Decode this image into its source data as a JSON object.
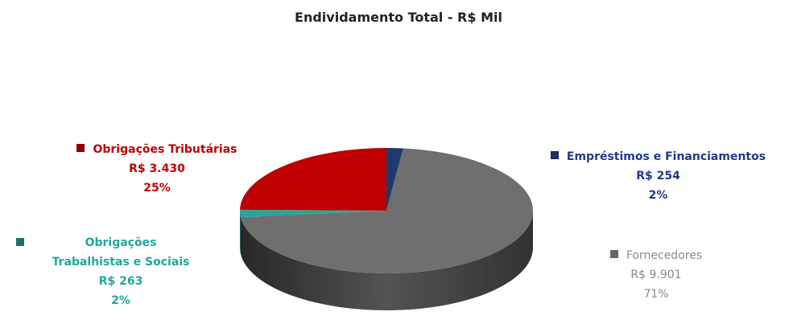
{
  "chart_data": {
    "type": "pie",
    "title": "Endividamento Total -  R$ Mil",
    "slices": [
      {
        "name": "Empréstimos e Financiamentos",
        "value_text": "R$ 254",
        "value": 254,
        "percent_text": "2%",
        "color": "#1f3a6e"
      },
      {
        "name": "Fornecedores",
        "value_text": "R$ 9.901",
        "value": 9901,
        "percent_text": "71%",
        "color": "#6f6f6f"
      },
      {
        "name_lines": [
          "Obrigações",
          "Trabalhistas e Sociais"
        ],
        "value_text": "R$ 263",
        "value": 263,
        "percent_text": "2%",
        "color": "#2aa59a"
      },
      {
        "name": "Obrigações Tributárias",
        "value_text": "R$ 3.430",
        "value": 3430,
        "percent_text": "25%",
        "color": "#c00000"
      }
    ],
    "label_colors": {
      "emprestimos": "#1f3a8a",
      "fornecedores": "#8a8a8a",
      "trabalhistas": "#20a89a",
      "tributarias": "#c00000"
    }
  }
}
